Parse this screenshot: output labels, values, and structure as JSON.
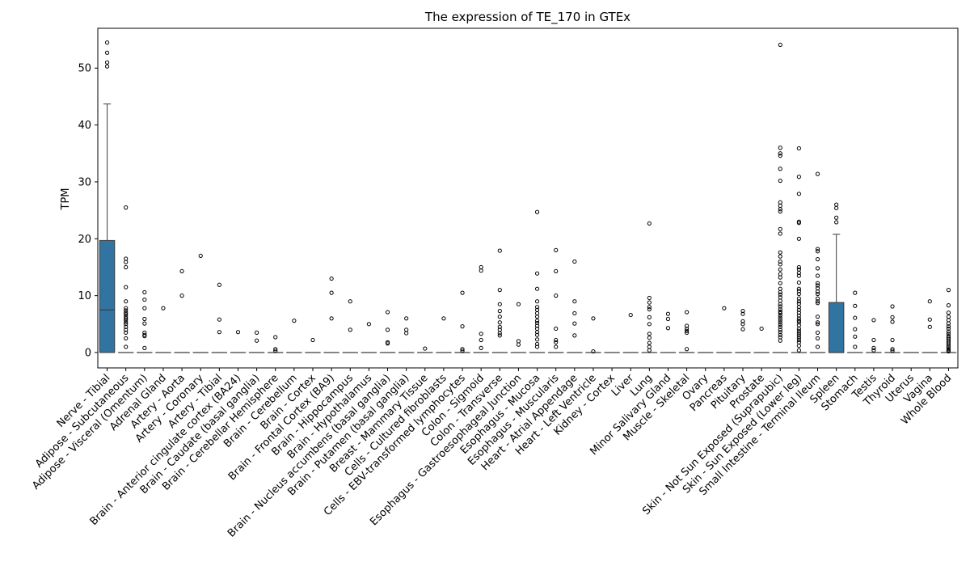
{
  "chart_data": {
    "type": "box",
    "title": "The expression of TE_170 in GTEx",
    "xlabel": "",
    "ylabel": "TPM",
    "ylim": [
      -2.7,
      57
    ],
    "yticks": [
      0,
      10,
      20,
      30,
      40,
      50
    ],
    "box_color": "#3274a1",
    "categories": [
      "Nerve - Tibial",
      "Adipose - Subcutaneous",
      "Adipose - Visceral (Omentum)",
      "Adrenal Gland",
      "Artery - Aorta",
      "Artery - Coronary",
      "Artery - Tibial",
      "Brain - Anterior cingulate cortex (BA24)",
      "Brain - Caudate (basal ganglia)",
      "Brain - Cerebellar Hemisphere",
      "Brain - Cerebellum",
      "Brain - Cortex",
      "Brain - Frontal Cortex (BA9)",
      "Brain - Hippocampus",
      "Brain - Hypothalamus",
      "Brain - Nucleus accumbens (basal ganglia)",
      "Brain - Putamen (basal ganglia)",
      "Breast - Mammary Tissue",
      "Cells - Cultured fibroblasts",
      "Cells - EBV-transformed lymphocytes",
      "Colon - Sigmoid",
      "Colon - Transverse",
      "Esophagus - Gastroesophageal Junction",
      "Esophagus - Mucosa",
      "Esophagus - Muscularis",
      "Heart - Atrial Appendage",
      "Heart - Left Ventricle",
      "Kidney - Cortex",
      "Liver",
      "Lung",
      "Minor Salivary Gland",
      "Muscle - Skeletal",
      "Ovary",
      "Pancreas",
      "Pituitary",
      "Prostate",
      "Skin - Not Sun Exposed (Suprapubic)",
      "Skin - Sun Exposed (Lower leg)",
      "Small Intestine - Terminal Ileum",
      "Spleen",
      "Stomach",
      "Testis",
      "Thyroid",
      "Uterus",
      "Vagina",
      "Whole Blood"
    ],
    "boxes": [
      {
        "q1": 0,
        "median": 7.5,
        "q3": 19.7,
        "whisker_low": 0,
        "whisker_high": 43.7,
        "outliers": [
          50.3,
          51,
          52.7,
          54.5
        ]
      },
      {
        "q1": 0,
        "median": 0,
        "q3": 0,
        "whisker_low": 0,
        "whisker_high": 0,
        "outliers": [
          25.5,
          16.5,
          15.9,
          15,
          11.5,
          9,
          7.8,
          7.4,
          7,
          6.7,
          6.3,
          6,
          5.7,
          5.3,
          5,
          4.5,
          4,
          3.5,
          2.5,
          1
        ]
      },
      {
        "q1": 0,
        "median": 0,
        "q3": 0,
        "whisker_low": 0,
        "whisker_high": 0,
        "outliers": [
          10.6,
          9.3,
          7.8,
          5.9,
          5.1,
          3.5,
          3.1,
          2.9,
          0.8
        ]
      },
      {
        "q1": 0,
        "median": 0,
        "q3": 0,
        "whisker_low": 0,
        "whisker_high": 0,
        "outliers": [
          7.8
        ]
      },
      {
        "q1": 0,
        "median": 0,
        "q3": 0,
        "whisker_low": 0,
        "whisker_high": 0,
        "outliers": [
          14.3,
          10
        ]
      },
      {
        "q1": 0,
        "median": 0,
        "q3": 0,
        "whisker_low": 0,
        "whisker_high": 0,
        "outliers": [
          17
        ]
      },
      {
        "q1": 0,
        "median": 0,
        "q3": 0,
        "whisker_low": 0,
        "whisker_high": 0,
        "outliers": [
          11.9,
          5.8,
          3.6
        ]
      },
      {
        "q1": 0,
        "median": 0,
        "q3": 0,
        "whisker_low": 0,
        "whisker_high": 0,
        "outliers": [
          3.6
        ]
      },
      {
        "q1": 0,
        "median": 0,
        "q3": 0,
        "whisker_low": 0,
        "whisker_high": 0,
        "outliers": [
          3.5,
          2.1
        ]
      },
      {
        "q1": 0,
        "median": 0,
        "q3": 0,
        "whisker_low": 0,
        "whisker_high": 0,
        "outliers": [
          2.7,
          0.6,
          0.3
        ]
      },
      {
        "q1": 0,
        "median": 0,
        "q3": 0,
        "whisker_low": 0,
        "whisker_high": 0,
        "outliers": [
          5.6
        ]
      },
      {
        "q1": 0,
        "median": 0,
        "q3": 0,
        "whisker_low": 0,
        "whisker_high": 0,
        "outliers": [
          2.2
        ]
      },
      {
        "q1": 0,
        "median": 0,
        "q3": 0,
        "whisker_low": 0,
        "whisker_high": 0,
        "outliers": [
          13,
          10.5,
          6
        ]
      },
      {
        "q1": 0,
        "median": 0,
        "q3": 0,
        "whisker_low": 0,
        "whisker_high": 0,
        "outliers": [
          9,
          4
        ]
      },
      {
        "q1": 0,
        "median": 0,
        "q3": 0,
        "whisker_low": 0,
        "whisker_high": 0,
        "outliers": [
          5
        ]
      },
      {
        "q1": 0,
        "median": 0,
        "q3": 0,
        "whisker_low": 0,
        "whisker_high": 0,
        "outliers": [
          7.1,
          4,
          1.8,
          1.6
        ]
      },
      {
        "q1": 0,
        "median": 0,
        "q3": 0,
        "whisker_low": 0,
        "whisker_high": 0,
        "outliers": [
          6,
          4,
          3.4
        ]
      },
      {
        "q1": 0,
        "median": 0,
        "q3": 0,
        "whisker_low": 0,
        "whisker_high": 0,
        "outliers": [
          0.7
        ]
      },
      {
        "q1": 0,
        "median": 0,
        "q3": 0,
        "whisker_low": 0,
        "whisker_high": 0,
        "outliers": [
          6
        ]
      },
      {
        "q1": 0,
        "median": 0,
        "q3": 0,
        "whisker_low": 0,
        "whisker_high": 0,
        "outliers": [
          10.5,
          4.6,
          0.6,
          0.3
        ]
      },
      {
        "q1": 0,
        "median": 0,
        "q3": 0,
        "whisker_low": 0,
        "whisker_high": 0,
        "outliers": [
          15,
          14.4,
          3.3,
          2.2,
          0.8
        ]
      },
      {
        "q1": 0,
        "median": 0,
        "q3": 0,
        "whisker_low": 0,
        "whisker_high": 0,
        "outliers": [
          17.9,
          11,
          8.5,
          7.3,
          6.3,
          5.3,
          4.5,
          4,
          3.4,
          3
        ]
      },
      {
        "q1": 0,
        "median": 0,
        "q3": 0,
        "whisker_low": 0,
        "whisker_high": 0,
        "outliers": [
          8.5,
          2,
          1.4
        ]
      },
      {
        "q1": 0,
        "median": 0,
        "q3": 0,
        "whisker_low": 0,
        "whisker_high": 0,
        "outliers": [
          24.7,
          13.9,
          11.2,
          9,
          8,
          7.5,
          6.9,
          6.3,
          5.6,
          5.2,
          4.7,
          4.2,
          3.6,
          3.1,
          2.3,
          1.5,
          1
        ]
      },
      {
        "q1": 0,
        "median": 0,
        "q3": 0,
        "whisker_low": 0,
        "whisker_high": 0,
        "outliers": [
          18,
          14.3,
          10,
          4.2,
          2.2,
          1.8,
          1
        ]
      },
      {
        "q1": 0,
        "median": 0,
        "q3": 0,
        "whisker_low": 0,
        "whisker_high": 0,
        "outliers": [
          16,
          9,
          6.9,
          5.1,
          3
        ]
      },
      {
        "q1": 0,
        "median": 0,
        "q3": 0,
        "whisker_low": 0,
        "whisker_high": 0,
        "outliers": [
          6,
          0.2
        ]
      },
      {
        "q1": 0,
        "median": 0,
        "q3": 0,
        "whisker_low": 0,
        "whisker_high": 0,
        "outliers": []
      },
      {
        "q1": 0,
        "median": 0,
        "q3": 0,
        "whisker_low": 0,
        "whisker_high": 0,
        "outliers": [
          6.6
        ]
      },
      {
        "q1": 0,
        "median": 0,
        "q3": 0,
        "whisker_low": 0,
        "whisker_high": 0,
        "outliers": [
          22.7,
          9.6,
          8.8,
          8,
          7.6,
          6.2,
          5,
          3.3,
          2.6,
          1.7,
          1,
          0.4
        ]
      },
      {
        "q1": 0,
        "median": 0,
        "q3": 0,
        "whisker_low": 0,
        "whisker_high": 0,
        "outliers": [
          6.8,
          5.9,
          4.3
        ]
      },
      {
        "q1": 0,
        "median": 0,
        "q3": 0,
        "whisker_low": 0,
        "whisker_high": 0,
        "outliers": [
          7.1,
          4.7,
          4.2,
          3.8,
          3.5,
          0.6
        ]
      },
      {
        "q1": 0,
        "median": 0,
        "q3": 0,
        "whisker_low": 0,
        "whisker_high": 0,
        "outliers": []
      },
      {
        "q1": 0,
        "median": 0,
        "q3": 0,
        "whisker_low": 0,
        "whisker_high": 0,
        "outliers": [
          7.8
        ]
      },
      {
        "q1": 0,
        "median": 0,
        "q3": 0,
        "whisker_low": 0,
        "whisker_high": 0,
        "outliers": [
          7.3,
          6.8,
          5.5,
          5,
          4.1
        ]
      },
      {
        "q1": 0,
        "median": 0,
        "q3": 0,
        "whisker_low": 0,
        "whisker_high": 0,
        "outliers": [
          4.2
        ]
      },
      {
        "q1": 0,
        "median": 0,
        "q3": 0,
        "whisker_low": 0,
        "whisker_high": 0,
        "outliers": [
          54.1,
          36,
          35,
          34.6,
          32.3,
          30.2,
          26.4,
          25.8,
          25.2,
          24.8,
          21.7,
          20.9,
          17.6,
          16.9,
          16,
          15.5,
          14.6,
          13.8,
          13.2,
          12.2,
          11.2,
          10.6,
          10.2,
          9.7,
          9.1,
          8.5,
          8.1,
          7.6,
          7.2,
          6.9,
          6.5,
          6.1,
          5.7,
          5.3,
          4.9,
          4.5,
          4,
          3.6,
          3.1,
          2.7,
          2.1
        ]
      },
      {
        "q1": 0,
        "median": 0,
        "q3": 0,
        "whisker_low": 0,
        "whisker_high": 0,
        "outliers": [
          35.9,
          30.9,
          27.9,
          23,
          22.8,
          20,
          15,
          14.6,
          14,
          13.5,
          12.3,
          11.2,
          10.8,
          10.3,
          9.5,
          9,
          8.6,
          8,
          7.5,
          7,
          6.5,
          6,
          5.6,
          5.3,
          4.8,
          4.2,
          3.8,
          3.4,
          3,
          2.6,
          2.2,
          1.8,
          1.2,
          0.4
        ]
      },
      {
        "q1": 0,
        "median": 0,
        "q3": 0,
        "whisker_low": 0,
        "whisker_high": 0,
        "outliers": [
          31.4,
          18.2,
          17.8,
          16.4,
          14.8,
          13.5,
          12.2,
          11.8,
          11.3,
          10.7,
          10.3,
          9.5,
          9,
          8.7,
          6.3,
          5.3,
          5,
          3.5,
          2.5,
          1
        ]
      },
      {
        "q1": 0,
        "median": 0,
        "q3": 8.8,
        "whisker_low": 0,
        "whisker_high": 20.8,
        "outliers": [
          26,
          25.4,
          23.7,
          22.9
        ]
      },
      {
        "q1": 0,
        "median": 0,
        "q3": 0,
        "whisker_low": 0,
        "whisker_high": 0,
        "outliers": [
          10.5,
          8.2,
          6.1,
          4.1,
          2.8,
          1
        ]
      },
      {
        "q1": 0,
        "median": 0,
        "q3": 0,
        "whisker_low": 0,
        "whisker_high": 0,
        "outliers": [
          5.7,
          2.2,
          0.8,
          0.4
        ]
      },
      {
        "q1": 0,
        "median": 0,
        "q3": 0,
        "whisker_low": 0,
        "whisker_high": 0,
        "outliers": [
          8.1,
          6.2,
          5.4,
          2.2,
          0.6,
          0.3
        ]
      },
      {
        "q1": 0,
        "median": 0,
        "q3": 0,
        "whisker_low": 0,
        "whisker_high": 0,
        "outliers": []
      },
      {
        "q1": 0,
        "median": 0,
        "q3": 0,
        "whisker_low": 0,
        "whisker_high": 0,
        "outliers": [
          9,
          5.8,
          4.5
        ]
      },
      {
        "q1": 0,
        "median": 0,
        "q3": 0,
        "whisker_low": 0,
        "whisker_high": 0,
        "outliers": [
          11,
          8.3,
          7,
          6.3,
          5.7,
          5.1,
          4.6,
          4.2,
          3.7,
          3.3,
          2.9,
          2.6,
          2.3,
          2,
          1.7,
          1.4,
          1.1,
          0.9,
          0.6,
          0.4,
          0.2
        ]
      }
    ],
    "grid": false,
    "legend": "none"
  }
}
